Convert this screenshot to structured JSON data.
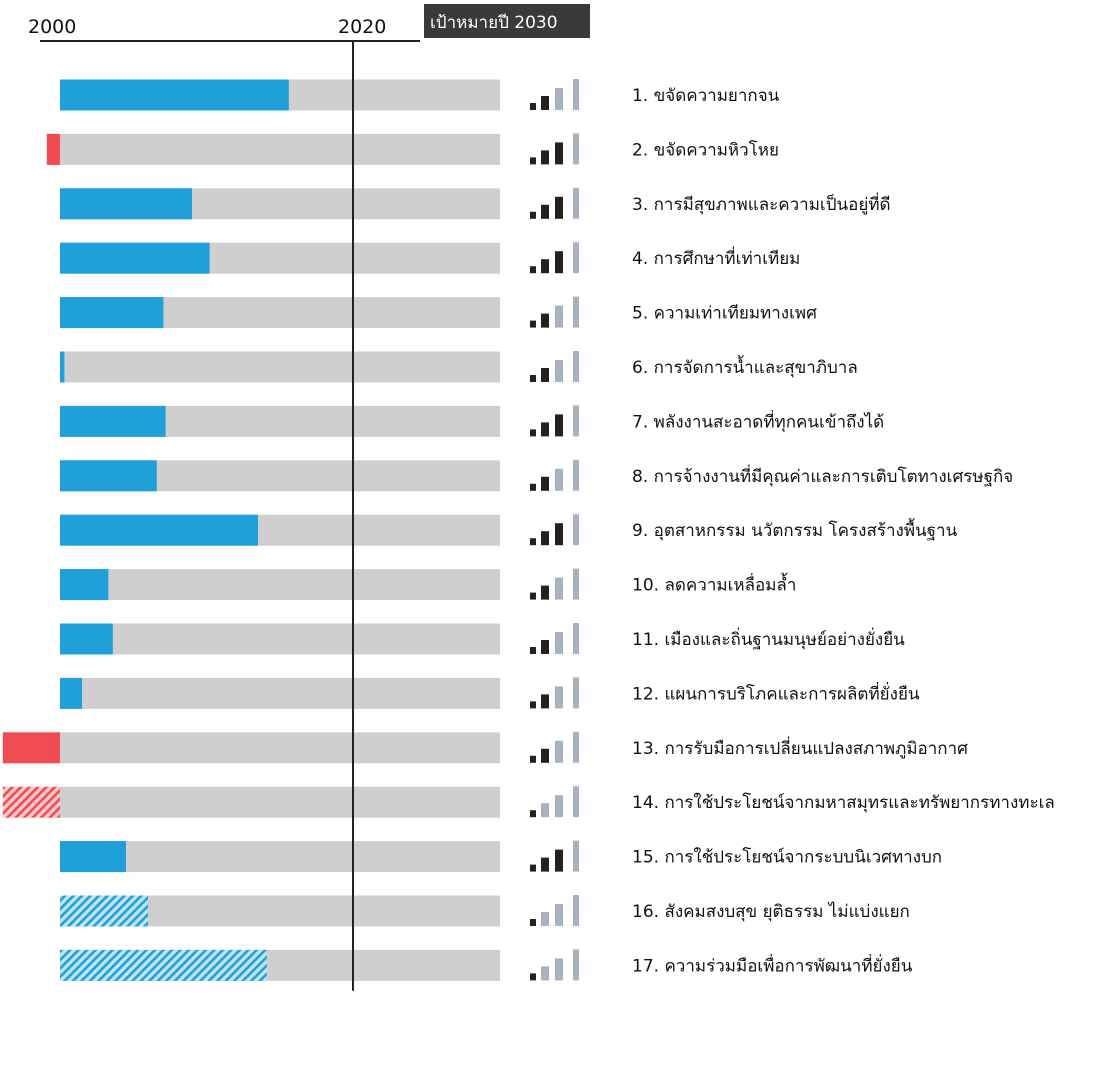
{
  "chart_data": {
    "type": "bar",
    "x_axis": {
      "start_year": 2000,
      "current_year": 2020,
      "target_year": 2030,
      "start_label": "2000",
      "current_label": "2020",
      "target_label": "เป้าหมายปี 2030"
    },
    "bar_range": [
      -100,
      100
    ],
    "colors": {
      "progress": "#1fa0d8",
      "regress": "#f04b52",
      "track": "#cfcfcf",
      "signal_active": "#222222",
      "signal_inactive": "#a9b3bf",
      "target_box": "#3a3a3a",
      "axis_line": "#222222"
    },
    "rows": [
      {
        "label": "1. ขจัดความยากจน",
        "value": 52,
        "hatched": false,
        "signal": 2
      },
      {
        "label": "2. ขจัดความหิวโหย",
        "value": -3,
        "hatched": false,
        "signal": 3
      },
      {
        "label": "3. การมีสุขภาพและความเป็นอยู่ที่ดี",
        "value": 30,
        "hatched": false,
        "signal": 3
      },
      {
        "label": "4. การศึกษาที่เท่าเทียม",
        "value": 34,
        "hatched": false,
        "signal": 3
      },
      {
        "label": "5. ความเท่าเทียมทางเพศ",
        "value": 23.5,
        "hatched": false,
        "signal": 2
      },
      {
        "label": "6. การจัดการน้ำและสุขาภิบาล",
        "value": 1,
        "hatched": false,
        "signal": 2
      },
      {
        "label": "7. พลังงานสะอาดที่ทุกคนเข้าถึงได้",
        "value": 24,
        "hatched": false,
        "signal": 3
      },
      {
        "label": "8. การจ้างงานที่มีคุณค่าและการเติบโตทางเศรษฐกิจ",
        "value": 22,
        "hatched": false,
        "signal": 2
      },
      {
        "label": "9. อุตสาหกรรม นวัตกรรม โครงสร้างพื้นฐาน",
        "value": 45,
        "hatched": false,
        "signal": 3
      },
      {
        "label": "10. ลดความเหลื่อมล้ำ",
        "value": 11,
        "hatched": false,
        "signal": 2
      },
      {
        "label": "11. เมืองและถิ่นฐานมนุษย์อย่างยั่งยืน",
        "value": 12,
        "hatched": false,
        "signal": 2
      },
      {
        "label": "12. แผนการบริโภคและการผลิตที่ยั่งยืน",
        "value": 5,
        "hatched": false,
        "signal": 2
      },
      {
        "label": "13. การรับมือการเปลี่ยนแปลงสภาพภูมิอากาศ",
        "value": -13,
        "hatched": false,
        "signal": 2
      },
      {
        "label": "14. การใช้ประโยชน์จากมหาสมุทรและทรัพยากรทางทะเล",
        "value": -13,
        "hatched": true,
        "signal": 1
      },
      {
        "label": "15. การใช้ประโยชน์จากระบบนิเวศทางบก",
        "value": 15,
        "hatched": false,
        "signal": 3
      },
      {
        "label": "16. สังคมสงบสุข ยุติธรรม ไม่แบ่งแยก",
        "value": 20,
        "hatched": true,
        "signal": 1
      },
      {
        "label": "17. ความร่วมมือเพื่อการพัฒนาที่ยั่งยืน",
        "value": 47,
        "hatched": true,
        "signal": 1
      }
    ]
  }
}
